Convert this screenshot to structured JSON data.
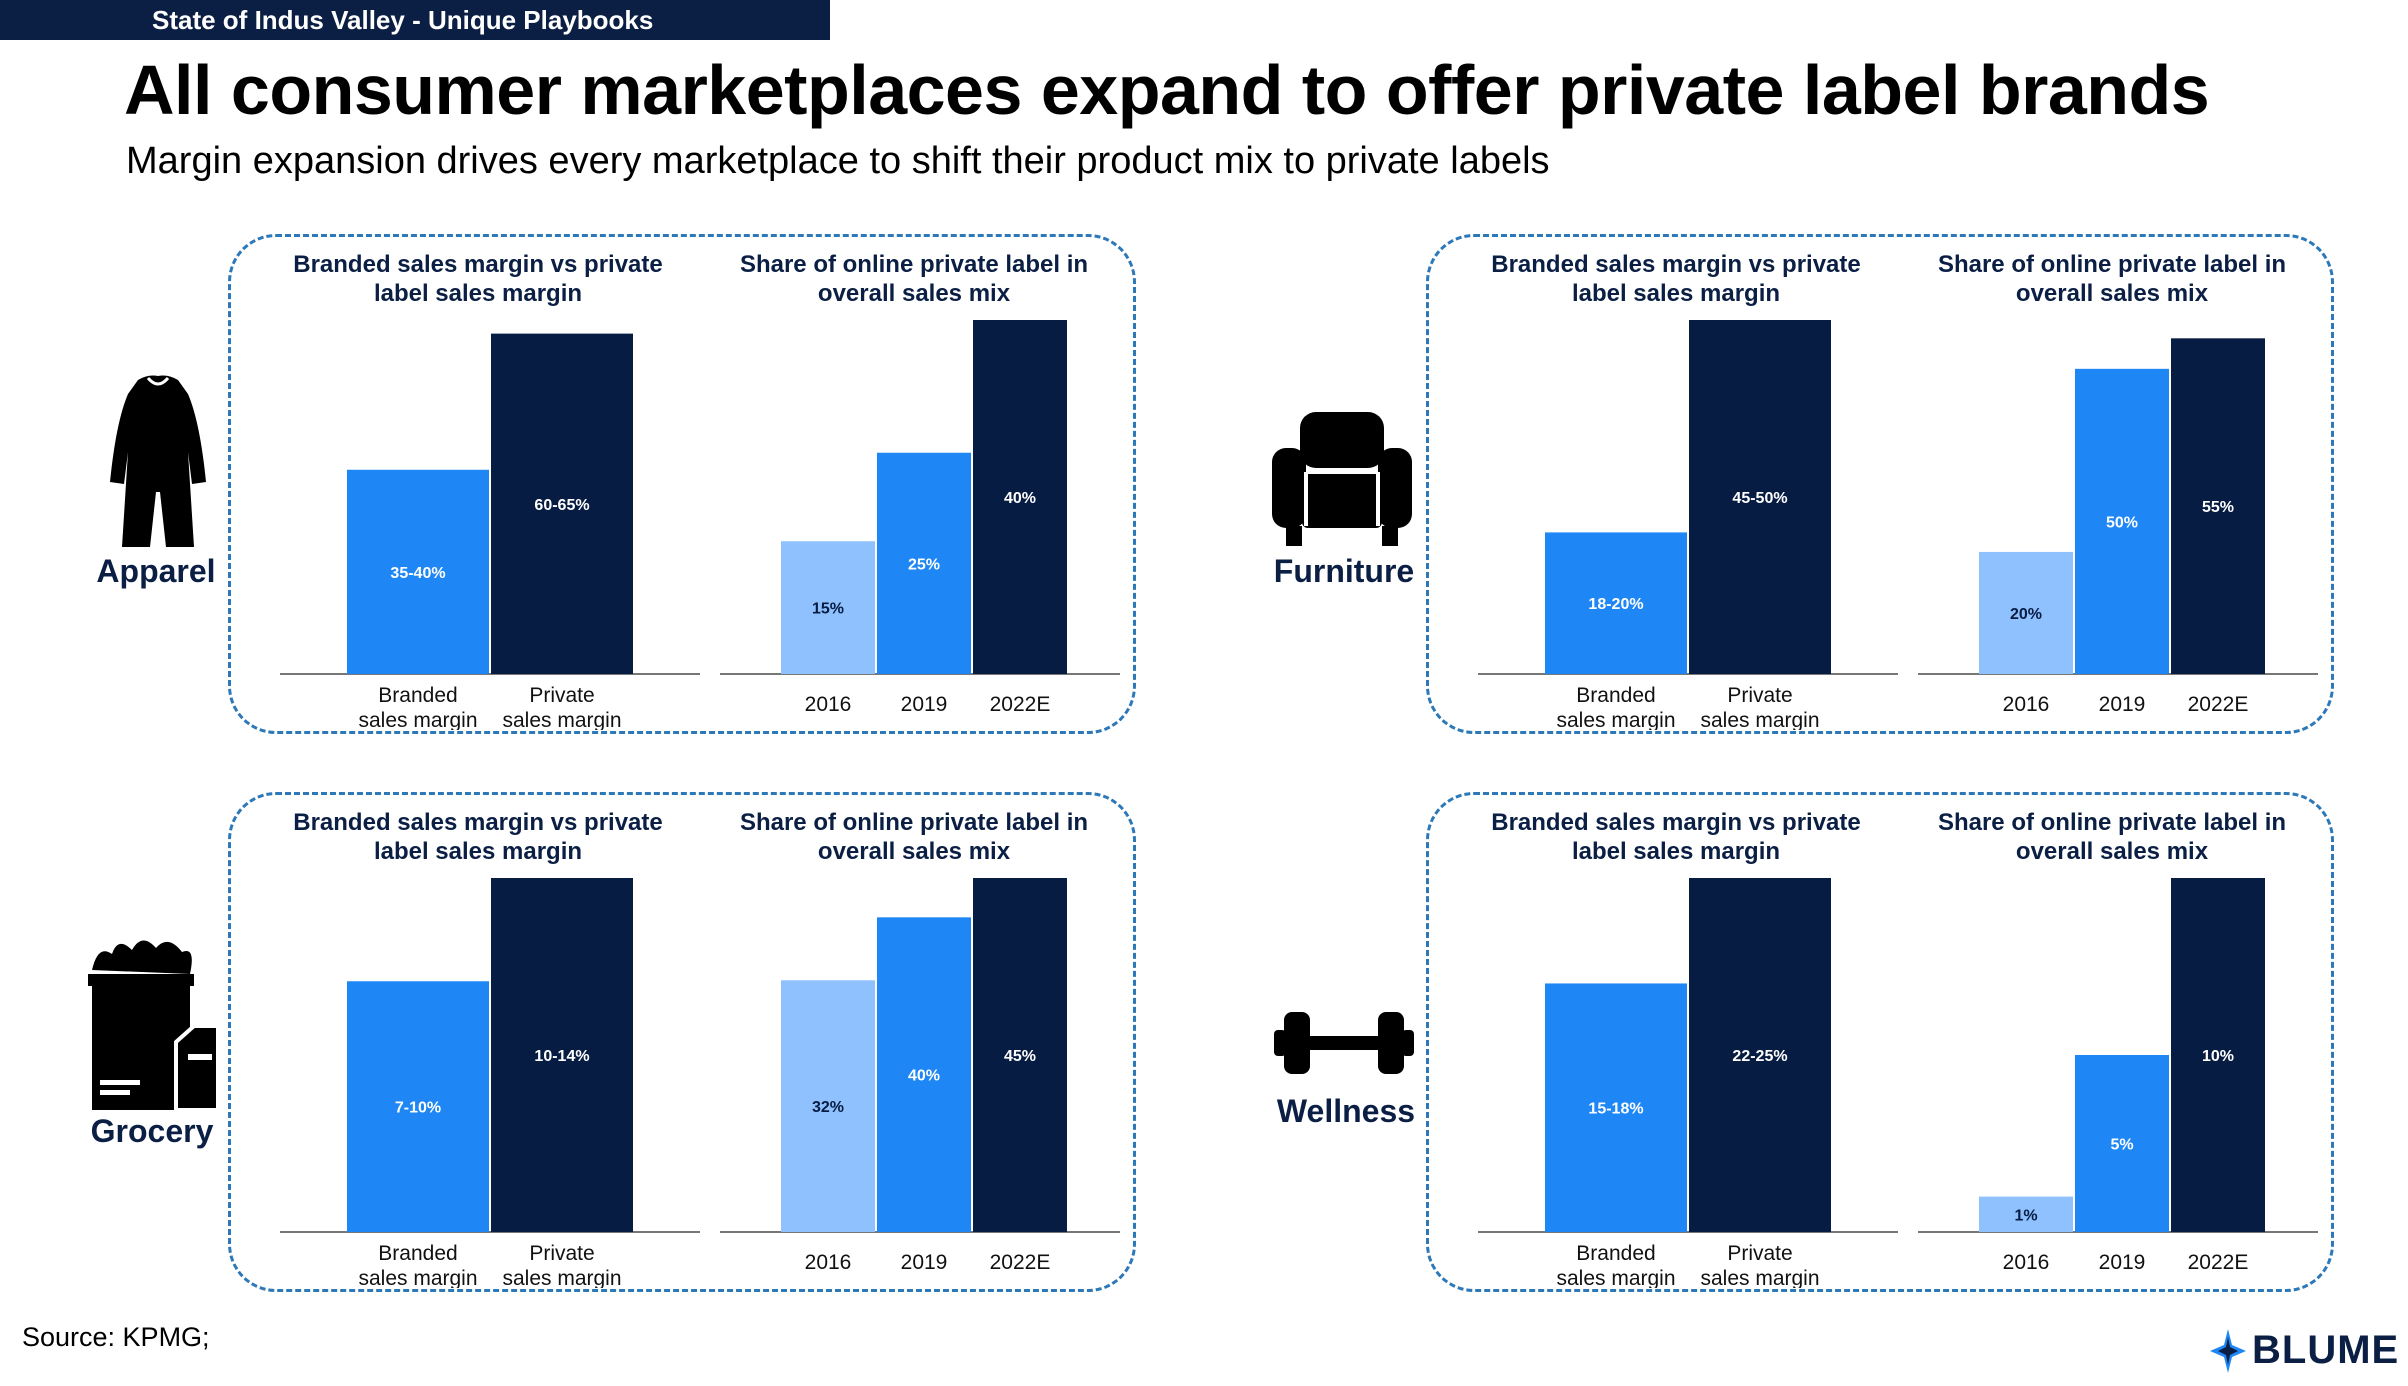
{
  "banner": "State of Indus Valley - Unique Playbooks",
  "title": "All consumer marketplaces expand to offer private label brands",
  "subtitle": "Margin expansion drives every marketplace to shift their product mix to private labels",
  "source": "Source: KPMG;",
  "logo": {
    "text": "BLUME",
    "icon": "blume-star-icon"
  },
  "colors": {
    "light": "#8fc1ff",
    "mid": "#1e87f5",
    "dark": "#071c42",
    "dashed_border": "#2d78b8"
  },
  "segments": [
    {
      "name": "Apparel",
      "icon": "dress-icon"
    },
    {
      "name": "Furniture",
      "icon": "armchair-icon"
    },
    {
      "name": "Grocery",
      "icon": "grocery-bag-icon"
    },
    {
      "name": "Wellness",
      "icon": "dumbbell-icon"
    }
  ],
  "chart_data": [
    {
      "segment": "Apparel",
      "type": "bar",
      "title": "Branded sales margin vs private label sales margin",
      "categories": [
        "Branded sales margin",
        "Private sales margin"
      ],
      "labels": [
        "35-40%",
        "60-65%"
      ],
      "values": [
        37.5,
        62.5
      ],
      "ylim": [
        0,
        65
      ]
    },
    {
      "segment": "Apparel",
      "type": "bar",
      "title": "Share of online private label in overall sales mix",
      "categories": [
        "2016",
        "2019",
        "2022E"
      ],
      "labels": [
        "15%",
        "25%",
        "40%"
      ],
      "values": [
        15,
        25,
        40
      ],
      "ylim": [
        0,
        40
      ]
    },
    {
      "segment": "Furniture",
      "type": "bar",
      "title": "Branded sales margin vs private label sales margin",
      "categories": [
        "Branded sales margin",
        "Private sales margin"
      ],
      "labels": [
        "18-20%",
        "45-50%"
      ],
      "values": [
        19,
        47.5
      ],
      "ylim": [
        0,
        47.5
      ]
    },
    {
      "segment": "Furniture",
      "type": "bar",
      "title": "Share of online private label in overall sales mix",
      "categories": [
        "2016",
        "2019",
        "2022E"
      ],
      "labels": [
        "20%",
        "50%",
        "55%"
      ],
      "values": [
        20,
        50,
        55
      ],
      "ylim": [
        0,
        58
      ]
    },
    {
      "segment": "Grocery",
      "type": "bar",
      "title": "Branded sales margin vs private label sales margin",
      "categories": [
        "Branded sales margin",
        "Private sales margin"
      ],
      "labels": [
        "7-10%",
        "10-14%"
      ],
      "values": [
        8.5,
        12
      ],
      "ylim": [
        0,
        12
      ]
    },
    {
      "segment": "Grocery",
      "type": "bar",
      "title": "Share of online private label in overall sales mix",
      "categories": [
        "2016",
        "2019",
        "2022E"
      ],
      "labels": [
        "32%",
        "40%",
        "45%"
      ],
      "values": [
        32,
        40,
        45
      ],
      "ylim": [
        0,
        45
      ]
    },
    {
      "segment": "Wellness",
      "type": "bar",
      "title": "Branded sales margin vs private label sales margin",
      "categories": [
        "Branded sales margin",
        "Private sales margin"
      ],
      "labels": [
        "15-18%",
        "22-25%"
      ],
      "values": [
        16.5,
        23.5
      ],
      "ylim": [
        0,
        23.5
      ]
    },
    {
      "segment": "Wellness",
      "type": "bar",
      "title": "Share of online private label in overall sales mix",
      "categories": [
        "2016",
        "2019",
        "2022E"
      ],
      "labels": [
        "1%",
        "5%",
        "10%"
      ],
      "values": [
        1,
        5,
        10
      ],
      "ylim": [
        0,
        10
      ]
    }
  ]
}
